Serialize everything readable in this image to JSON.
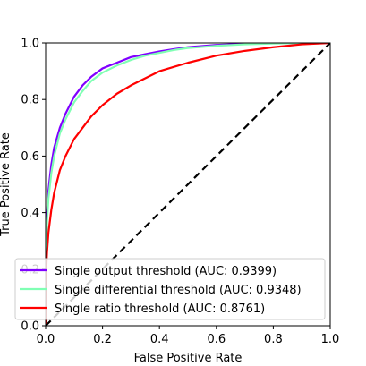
{
  "chart_data": {
    "type": "line",
    "title": "",
    "xlabel": "False Positive Rate",
    "ylabel": "True Positive Rate",
    "xlim": [
      0,
      1
    ],
    "ylim": [
      0,
      1
    ],
    "xticks": [
      "0.0",
      "0.2",
      "0.4",
      "0.6",
      "0.8",
      "1.0"
    ],
    "yticks": [
      "0.0",
      "0.2",
      "0.4",
      "0.6",
      "0.8",
      "1.0"
    ],
    "grid": false,
    "legend_position": "lower-right",
    "series": [
      {
        "name": "Single output threshold (AUC: 0.9399)",
        "color": "#8000ff",
        "x": [
          0,
          0.002,
          0.005,
          0.01,
          0.02,
          0.03,
          0.05,
          0.07,
          0.1,
          0.13,
          0.16,
          0.2,
          0.25,
          0.3,
          0.35,
          0.4,
          0.45,
          0.5,
          0.6,
          0.7,
          0.8,
          0.9,
          1.0
        ],
        "y": [
          0,
          0.3,
          0.4,
          0.48,
          0.57,
          0.63,
          0.7,
          0.75,
          0.81,
          0.85,
          0.88,
          0.91,
          0.93,
          0.95,
          0.96,
          0.97,
          0.978,
          0.985,
          0.993,
          0.997,
          0.999,
          1.0,
          1.0
        ]
      },
      {
        "name": "Single differential threshold (AUC: 0.9348)",
        "color": "#80ffb4",
        "x": [
          0,
          0.002,
          0.005,
          0.01,
          0.02,
          0.03,
          0.05,
          0.07,
          0.1,
          0.13,
          0.16,
          0.2,
          0.25,
          0.3,
          0.35,
          0.4,
          0.45,
          0.5,
          0.6,
          0.7,
          0.8,
          0.9,
          1.0
        ],
        "y": [
          0,
          0.28,
          0.37,
          0.45,
          0.54,
          0.6,
          0.68,
          0.73,
          0.79,
          0.83,
          0.865,
          0.895,
          0.92,
          0.94,
          0.955,
          0.965,
          0.975,
          0.982,
          0.99,
          0.995,
          0.998,
          1.0,
          1.0
        ]
      },
      {
        "name": "Single ratio threshold (AUC: 0.8761)",
        "color": "#ff0000",
        "x": [
          0,
          0.002,
          0.005,
          0.01,
          0.02,
          0.03,
          0.05,
          0.07,
          0.1,
          0.13,
          0.16,
          0.2,
          0.25,
          0.3,
          0.35,
          0.4,
          0.45,
          0.5,
          0.6,
          0.7,
          0.8,
          0.9,
          1.0
        ],
        "y": [
          0,
          0.2,
          0.26,
          0.33,
          0.41,
          0.47,
          0.55,
          0.6,
          0.66,
          0.7,
          0.74,
          0.78,
          0.82,
          0.85,
          0.875,
          0.9,
          0.915,
          0.93,
          0.955,
          0.972,
          0.985,
          0.995,
          1.0
        ]
      }
    ],
    "reference_line": {
      "color": "#000000",
      "x": [
        0,
        1
      ],
      "y": [
        0,
        1
      ]
    }
  }
}
